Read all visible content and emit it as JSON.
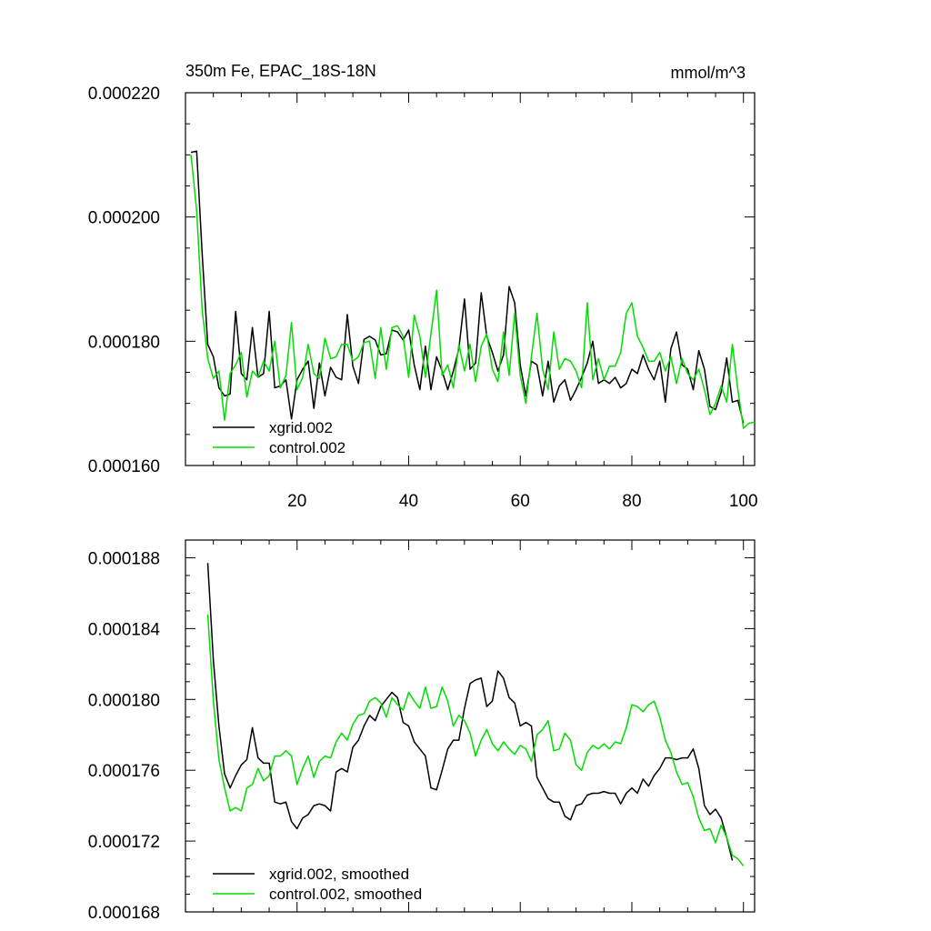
{
  "chart_data": [
    {
      "type": "line",
      "title": "350m Fe, EPAC_18S-18N",
      "units": "mmol/m^3",
      "xlabel": "",
      "ylabel": "",
      "xlim": [
        0,
        102
      ],
      "ylim": [
        0.00016,
        0.00022
      ],
      "yticks": [
        0.00016,
        0.00018,
        0.0002,
        0.00022
      ],
      "ytick_labels": [
        "0.000160",
        "0.000180",
        "0.000200",
        "0.000220"
      ],
      "xticks": [
        20,
        40,
        60,
        80,
        100
      ],
      "xtick_labels": [
        "20",
        "40",
        "60",
        "80",
        "100"
      ],
      "legend_position": "bottom-left",
      "series": [
        {
          "name": "xgrid.002",
          "color": "#000000",
          "x_start": 1,
          "values": [
            0.0002104,
            0.0002106,
            0.000194,
            0.0001795,
            0.0001775,
            0.0001725,
            0.0001712,
            0.0001715,
            0.0001848,
            0.0001748,
            0.0001738,
            0.0001822,
            0.0001742,
            0.0001748,
            0.0001848,
            0.0001725,
            0.0001728,
            0.0001738,
            0.0001675,
            0.0001738,
            0.0001755,
            0.0001768,
            0.0001692,
            0.0001765,
            0.0001712,
            0.0001758,
            0.0001742,
            0.0001738,
            0.0001843,
            0.000176,
            0.0001732,
            0.0001803,
            0.0001808,
            0.0001802,
            0.0001778,
            0.000178,
            0.0001818,
            0.0001815,
            0.0001802,
            0.0001818,
            0.0001762,
            0.0001722,
            0.0001792,
            0.0001722,
            0.0001775,
            0.0001752,
            0.0001722,
            0.0001752,
            0.0001788,
            0.0001868,
            0.0001755,
            0.0001765,
            0.0001878,
            0.0001808,
            0.0001782,
            0.0001752,
            0.0001778,
            0.0001888,
            0.0001862,
            0.0001762,
            0.0001712,
            0.0001768,
            0.0001762,
            0.0001712,
            0.0001768,
            0.0001702,
            0.0001728,
            0.0001738,
            0.0001705,
            0.0001722,
            0.0001742,
            0.0001765,
            0.00018,
            0.0001732,
            0.0001738,
            0.0001732,
            0.0001742,
            0.0001725,
            0.0001732,
            0.0001755,
            0.0001748,
            0.0001778,
            0.0001755,
            0.0001738,
            0.0001768,
            0.0001702,
            0.0001788,
            0.0001815,
            0.0001762,
            0.0001755,
            0.0001722,
            0.0001785,
            0.0001755,
            0.0001695,
            0.000169,
            0.0001718,
            0.0001773,
            0.0001702,
            0.0001705,
            0.0001668
          ]
        },
        {
          "name": "control.002",
          "color": "#00dd00",
          "x_start": 1,
          "values": [
            0.00021,
            0.000201,
            0.000185,
            0.0001772,
            0.000174,
            0.0001752,
            0.0001673,
            0.0001748,
            0.0001762,
            0.0001782,
            0.000171,
            0.0001752,
            0.0001742,
            0.0001768,
            0.0001752,
            0.00018,
            0.0001725,
            0.0001745,
            0.000183,
            0.0001722,
            0.0001742,
            0.0001795,
            0.0001748,
            0.000174,
            0.0001805,
            0.0001772,
            0.0001775,
            0.0001795,
            0.0001795,
            0.0001768,
            0.0001775,
            0.0001798,
            0.00018,
            0.000174,
            0.0001822,
            0.0001755,
            0.0001822,
            0.0001825,
            0.0001808,
            0.0001742,
            0.0001842,
            0.0001808,
            0.0001742,
            0.0001812,
            0.0001882,
            0.0001745,
            0.0001762,
            0.0001725,
            0.0001795,
            0.0001752,
            0.0001795,
            0.0001735,
            0.0001792,
            0.0001812,
            0.0001755,
            0.0001735,
            0.0001815,
            0.0001745,
            0.0001845,
            0.0001745,
            0.00017,
            0.0001775,
            0.0001845,
            0.0001755,
            0.0001722,
            0.0001815,
            0.0001755,
            0.0001772,
            0.0001768,
            0.0001752,
            0.0001725,
            0.0001862,
            0.0001738,
            0.0001772,
            0.0001738,
            0.000176,
            0.000176,
            0.0001782,
            0.0001845,
            0.0001862,
            0.0001808,
            0.000179,
            0.0001768,
            0.0001768,
            0.0001782,
            0.0001752,
            0.0001775,
            0.0001732,
            0.0001772,
            0.0001748,
            0.0001738,
            0.0001755,
            0.0001722,
            0.0001682,
            0.00017,
            0.0001728,
            0.0001702,
            0.0001795,
            0.0001722,
            0.000166,
            0.0001668,
            0.000167
          ]
        }
      ]
    },
    {
      "type": "line",
      "title": "",
      "xlabel": "",
      "ylabel": "",
      "xlim": [
        0,
        102
      ],
      "ylim": [
        0.000168,
        0.000189
      ],
      "yticks": [
        0.000168,
        0.000172,
        0.000176,
        0.00018,
        0.000184,
        0.000188
      ],
      "ytick_labels": [
        "0.000168",
        "0.000172",
        "0.000176",
        "0.000180",
        "0.000184",
        "0.000188"
      ],
      "xticks": [
        20,
        40,
        60,
        80,
        100
      ],
      "legend_position": "bottom-left",
      "series": [
        {
          "name": "xgrid.002, smoothed",
          "color": "#000000",
          "x_start": 4,
          "values": [
            0.0001877,
            0.0001822,
            0.0001785,
            0.0001758,
            0.000175,
            0.0001757,
            0.0001763,
            0.0001766,
            0.0001784,
            0.0001767,
            0.0001764,
            0.0001764,
            0.0001742,
            0.0001741,
            0.0001742,
            0.0001731,
            0.0001727,
            0.0001733,
            0.0001735,
            0.000174,
            0.0001741,
            0.000174,
            0.0001737,
            0.0001759,
            0.0001761,
            0.0001759,
            0.0001773,
            0.0001777,
            0.0001785,
            0.0001791,
            0.0001788,
            0.0001796,
            0.00018,
            0.0001804,
            0.0001801,
            0.0001787,
            0.0001785,
            0.0001776,
            0.0001772,
            0.0001768,
            0.000175,
            0.0001749,
            0.000176,
            0.0001772,
            0.0001777,
            0.0001777,
            0.0001795,
            0.0001809,
            0.0001811,
            0.0001812,
            0.0001796,
            0.0001799,
            0.0001816,
            0.0001812,
            0.0001801,
            0.0001798,
            0.0001785,
            0.0001787,
            0.0001785,
            0.0001756,
            0.000175,
            0.0001744,
            0.0001742,
            0.0001742,
            0.0001734,
            0.0001732,
            0.000174,
            0.0001741,
            0.0001746,
            0.0001747,
            0.0001747,
            0.0001748,
            0.0001747,
            0.0001747,
            0.0001741,
            0.0001747,
            0.000175,
            0.0001747,
            0.0001755,
            0.0001751,
            0.0001757,
            0.0001761,
            0.0001767,
            0.0001767,
            0.0001766,
            0.0001767,
            0.0001767,
            0.0001772,
            0.0001761,
            0.000174,
            0.0001735,
            0.0001738,
            0.0001733,
            0.0001722,
            0.0001709
          ]
        },
        {
          "name": "control.002, smoothed",
          "color": "#00dd00",
          "x_start": 4,
          "values": [
            0.0001848,
            0.0001799,
            0.0001766,
            0.000175,
            0.0001737,
            0.0001739,
            0.0001737,
            0.000175,
            0.0001752,
            0.0001761,
            0.0001754,
            0.0001757,
            0.0001768,
            0.0001768,
            0.0001771,
            0.0001768,
            0.0001752,
            0.0001761,
            0.0001768,
            0.0001756,
            0.0001765,
            0.0001768,
            0.0001767,
            0.0001776,
            0.0001781,
            0.0001777,
            0.0001786,
            0.0001791,
            0.0001792,
            0.0001799,
            0.0001801,
            0.0001798,
            0.000179,
            0.0001801,
            0.0001797,
            0.0001794,
            0.0001804,
            0.0001799,
            0.0001795,
            0.0001807,
            0.0001795,
            0.0001796,
            0.0001807,
            0.0001799,
            0.0001785,
            0.0001791,
            0.0001788,
            0.0001781,
            0.0001768,
            0.0001777,
            0.0001783,
            0.0001775,
            0.0001771,
            0.0001776,
            0.0001772,
            0.0001769,
            0.0001774,
            0.0001772,
            0.0001765,
            0.000178,
            0.0001783,
            0.0001788,
            0.0001771,
            0.0001772,
            0.0001781,
            0.0001777,
            0.0001763,
            0.000176,
            0.000177,
            0.0001774,
            0.0001772,
            0.0001775,
            0.0001772,
            0.0001776,
            0.0001775,
            0.0001784,
            0.0001797,
            0.0001796,
            0.0001793,
            0.0001797,
            0.0001799,
            0.000179,
            0.0001777,
            0.000177,
            0.0001759,
            0.0001752,
            0.0001753,
            0.0001745,
            0.0001733,
            0.0001726,
            0.0001727,
            0.0001719,
            0.0001729,
            0.0001722,
            0.0001712,
            0.000171,
            0.0001706
          ]
        }
      ]
    }
  ]
}
